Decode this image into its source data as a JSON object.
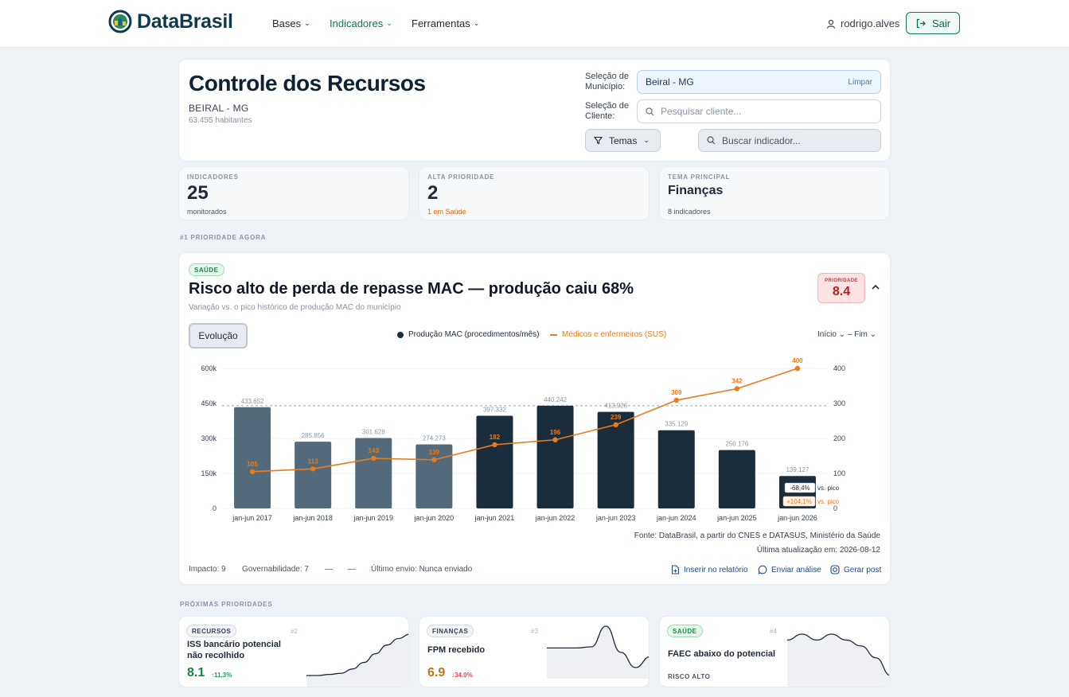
{
  "app": {
    "name": "DataBrasil"
  },
  "nav": {
    "items": [
      "Bases",
      "Indicadores",
      "Ferramentas"
    ],
    "user": "rodrigo.alves",
    "logout": "Sair"
  },
  "header": {
    "title": "Controle dos Recursos",
    "municipality": "BEIRAL - MG",
    "population": "63.455 habitantes",
    "municipality_label": "Seleção de Município:",
    "municipality_value": "Beiral - MG",
    "clear_label": "Limpar",
    "client_label": "Seleção de Cliente:",
    "client_placeholder": "Pesquisar cliente...",
    "themes_button": "Temas",
    "indicator_placeholder": "Buscar indicador..."
  },
  "stats": [
    {
      "caption": "INDICADORES",
      "value": "25",
      "sub": "monitorados"
    },
    {
      "caption": "ALTA PRIORIDADE",
      "value": "2",
      "sub": "1 em Saúde"
    },
    {
      "caption": "TEMA PRINCIPAL",
      "value": "Finanças",
      "sub": "8 indicadores"
    }
  ],
  "top_caption": "#1 PRIORIDADE AGORA",
  "main": {
    "tag": "SAÚDE",
    "title": "Risco alto de perda de repasse MAC — produção caiu 68%",
    "subtitle": "Variação vs. o pico histórico de produção MAC do município",
    "priority_caption": "PRIORIDADE",
    "priority_value": "8.4",
    "tab_label": "Evolução",
    "range_label": "Início ⌄  – Fim   ⌄",
    "source": "Fonte: DataBrasil, a partir do CNES e DATASUS, Ministério da Saúde",
    "updated": "Última atualização em: 2026-08-12",
    "impact": "Impacto: 9",
    "governability": "Governabilidade: 7",
    "dash1": "—",
    "dash2": "—",
    "last_sent": "Último envio: Nunca enviado",
    "actions": [
      "Inserir no relatório",
      "Enviar análise",
      "Gerar post"
    ]
  },
  "chart_data": {
    "type": "bar",
    "categories": [
      "jan-jun 2017",
      "jan-jun 2018",
      "jan-jun 2019",
      "jan-jun 2020",
      "jan-jun 2021",
      "jan-jun 2022",
      "jan-jun 2023",
      "jan-jun 2024",
      "jan-jun 2025",
      "jan-jun 2026"
    ],
    "series": [
      {
        "name": "Produção MAC (procedimentos/mês)",
        "type": "bar",
        "axis": "left",
        "values": [
          433652,
          285856,
          301628,
          274273,
          397332,
          440242,
          413926,
          335129,
          250176,
          139127
        ],
        "labels": [
          "433.652",
          "285.856",
          "301.628",
          "274.273",
          "397.332",
          "440.242",
          "413.926",
          "335.129",
          "250.176",
          "139.127"
        ]
      },
      {
        "name": "Médicos e enfermeiros (SUS)",
        "type": "line",
        "axis": "right",
        "values": [
          105,
          113,
          143,
          139,
          182,
          196,
          239,
          309,
          342,
          400
        ]
      }
    ],
    "left_ticks": [
      "0",
      "150k",
      "300k",
      "450k",
      "600k"
    ],
    "right_ticks": [
      "0",
      "100",
      "200",
      "300",
      "400"
    ],
    "ylim_left": [
      0,
      600000
    ],
    "ylim_right": [
      0,
      400
    ],
    "reference_line": 440242,
    "annotations": [
      {
        "value": "-68,4%",
        "text": "vs. pico"
      },
      {
        "value": "+104,1%",
        "text": "vs. pico"
      }
    ],
    "colors": {
      "bar_early": "#526a7a",
      "bar_late": "#1b2c3a",
      "line": "#ea7a1a"
    }
  },
  "next_caption": "PRÓXIMAS PRIORIDADES",
  "next": [
    {
      "tag": "RECURSOS",
      "rank": "#2",
      "title": "ISS bancário potencial não recolhido",
      "score": "8.1",
      "delta": "↑11.3%",
      "trend": [
        2,
        2,
        3,
        4,
        8,
        14,
        22,
        30,
        36,
        40
      ]
    },
    {
      "tag": "FINANÇAS",
      "rank": "#3",
      "title": "FPM recebido",
      "score": "6.9",
      "delta": "↓34.0%",
      "trend": [
        20,
        20,
        20,
        21,
        40,
        16,
        2,
        12
      ]
    },
    {
      "tag": "SAÚDE",
      "rank": "#4",
      "title": "FAEC abaixo do potencial",
      "status": "RISCO ALTO",
      "trend": [
        30,
        31,
        30,
        31,
        30,
        29,
        27,
        24
      ]
    }
  ]
}
